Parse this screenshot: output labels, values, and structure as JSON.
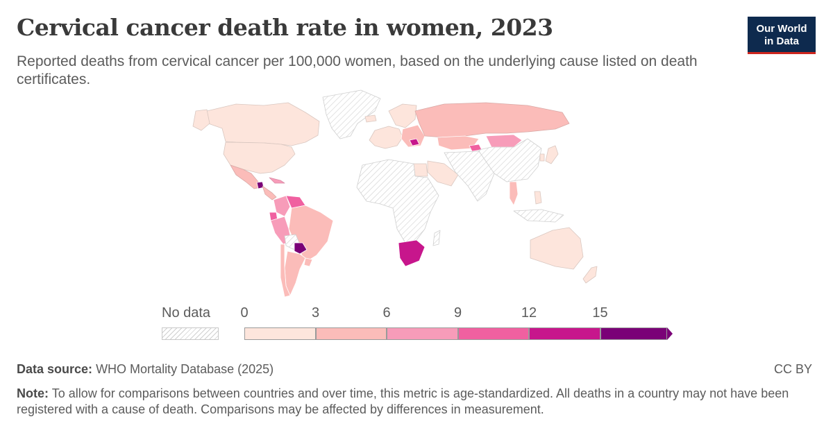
{
  "title": "Cervical cancer death rate in women, 2023",
  "subtitle": "Reported deaths from cervical cancer per 100,000 women, based on the underlying cause listed on death certificates.",
  "logo": {
    "line1": "Our World",
    "line2": "in Data"
  },
  "legend": {
    "no_data_label": "No data",
    "ticks": [
      "0",
      "3",
      "6",
      "9",
      "12",
      "15"
    ],
    "bins": [
      {
        "from": 0,
        "to": 3,
        "color": "#fde5dc"
      },
      {
        "from": 3,
        "to": 6,
        "color": "#fbbcb9"
      },
      {
        "from": 6,
        "to": 9,
        "color": "#f79cb9"
      },
      {
        "from": 9,
        "to": 12,
        "color": "#f060a0"
      },
      {
        "from": 12,
        "to": 15,
        "color": "#c7168c"
      },
      {
        "from": 15,
        "to": null,
        "color": "#7a0177"
      }
    ]
  },
  "chart_data": {
    "type": "choropleth",
    "metric": "Reported deaths from cervical cancer per 100,000 women",
    "year": 2023,
    "bins": [
      0,
      3,
      6,
      9,
      12,
      15
    ],
    "regions": [
      {
        "name": "Canada",
        "bin": "0-3"
      },
      {
        "name": "United States",
        "bin": "0-3"
      },
      {
        "name": "Greenland",
        "bin": "no data"
      },
      {
        "name": "Mexico",
        "bin": "3-6"
      },
      {
        "name": "Guatemala",
        "bin": "15+"
      },
      {
        "name": "Cuba",
        "bin": "6-9"
      },
      {
        "name": "Colombia",
        "bin": "6-9"
      },
      {
        "name": "Venezuela",
        "bin": "9-12"
      },
      {
        "name": "Ecuador",
        "bin": "9-12"
      },
      {
        "name": "Peru",
        "bin": "6-9"
      },
      {
        "name": "Brazil",
        "bin": "3-6"
      },
      {
        "name": "Bolivia",
        "bin": "no data"
      },
      {
        "name": "Paraguay",
        "bin": "15+"
      },
      {
        "name": "Argentina",
        "bin": "3-6"
      },
      {
        "name": "Chile",
        "bin": "3-6"
      },
      {
        "name": "Uruguay",
        "bin": "3-6"
      },
      {
        "name": "Western Europe",
        "bin": "0-3"
      },
      {
        "name": "Eastern Europe",
        "bin": "3-6"
      },
      {
        "name": "Romania",
        "bin": "12-15"
      },
      {
        "name": "Russia",
        "bin": "3-6"
      },
      {
        "name": "Kazakhstan",
        "bin": "3-6"
      },
      {
        "name": "Kyrgyzstan",
        "bin": "9-12"
      },
      {
        "name": "Mongolia",
        "bin": "6-9"
      },
      {
        "name": "China",
        "bin": "no data"
      },
      {
        "name": "Japan",
        "bin": "0-3"
      },
      {
        "name": "South Korea",
        "bin": "0-3"
      },
      {
        "name": "Thailand",
        "bin": "3-6"
      },
      {
        "name": "Philippines",
        "bin": "0-3"
      },
      {
        "name": "Egypt",
        "bin": "0-3"
      },
      {
        "name": "Saudi Arabia",
        "bin": "0-3"
      },
      {
        "name": "Africa (most countries)",
        "bin": "no data"
      },
      {
        "name": "South Africa",
        "bin": "12-15"
      },
      {
        "name": "Australia",
        "bin": "0-3"
      },
      {
        "name": "New Zealand",
        "bin": "0-3"
      }
    ]
  },
  "footer": {
    "source_label": "Data source:",
    "source_text": "WHO Mortality Database (2025)",
    "license": "CC BY",
    "note_label": "Note:",
    "note_text": "To allow for comparisons between countries and over time, this metric is age-standardized. All deaths in a country may not have been registered with a cause of death. Comparisons may be affected by differences in measurement."
  }
}
